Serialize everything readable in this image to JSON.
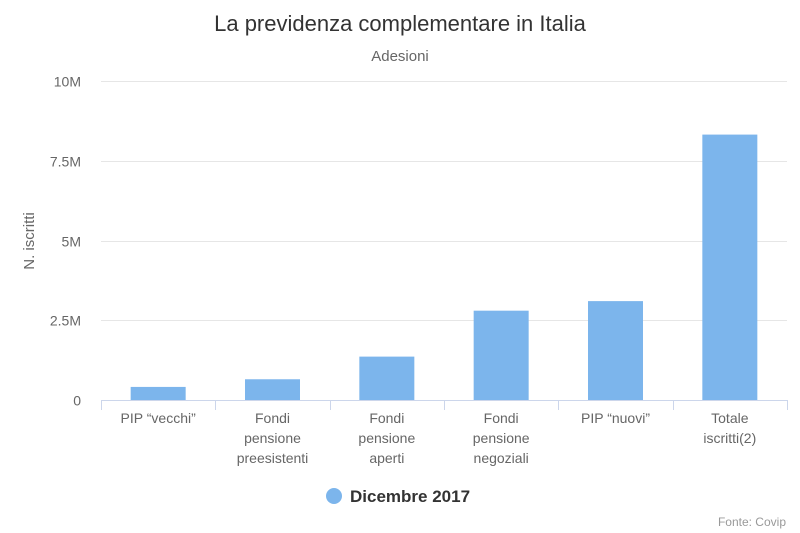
{
  "chart_data": {
    "type": "bar",
    "title": "La previdenza complementare in Italia",
    "subtitle": "Adesioni",
    "ylabel": "N. iscritti",
    "xlabel": "",
    "categories": [
      [
        "PIP “vecchi”"
      ],
      [
        "Fondi",
        "pensione",
        "preesistenti"
      ],
      [
        "Fondi",
        "pensione",
        "aperti"
      ],
      [
        "Fondi",
        "pensione",
        "negoziali"
      ],
      [
        "PIP “nuovi”"
      ],
      [
        "Totale",
        "iscritti(2)"
      ]
    ],
    "series": [
      {
        "name": "Dicembre 2017",
        "values": [
          410000,
          650000,
          1360000,
          2800000,
          3100000,
          8320000
        ]
      }
    ],
    "ylim": [
      0,
      10000000
    ],
    "yticks": [
      {
        "value": 0,
        "label": "0"
      },
      {
        "value": 2500000,
        "label": "2.5M"
      },
      {
        "value": 5000000,
        "label": "5M"
      },
      {
        "value": 7500000,
        "label": "7.5M"
      },
      {
        "value": 10000000,
        "label": "10M"
      }
    ],
    "grid": true,
    "legend_position": "bottom-center",
    "colors": {
      "bar": "#7cb5ec",
      "grid": "#e6e6e6",
      "axis": "#ccd6eb"
    }
  },
  "credits": "Fonte: Covip"
}
